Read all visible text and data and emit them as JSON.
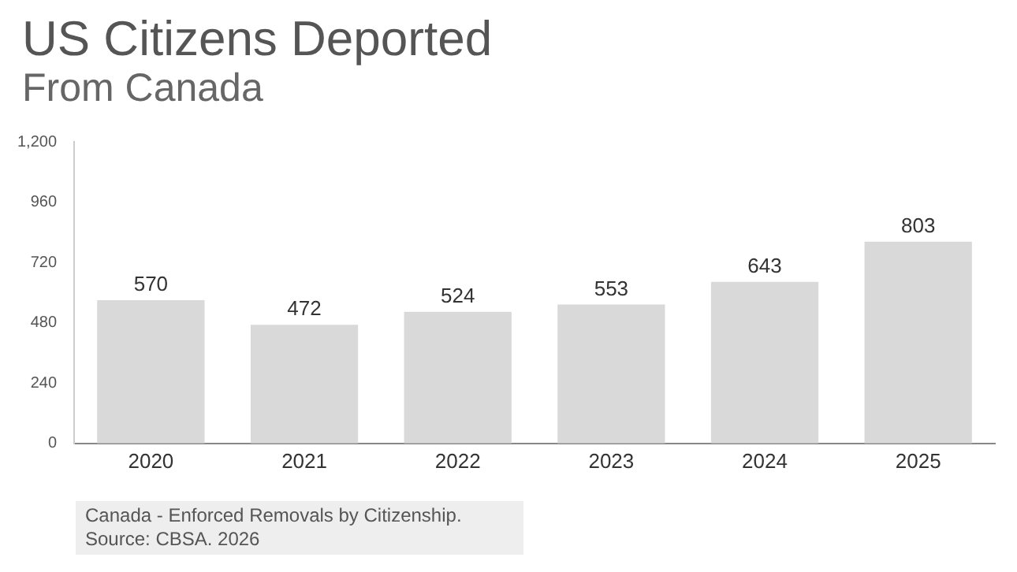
{
  "chart_data": {
    "type": "bar",
    "title": "US Citizens Deported",
    "subtitle": "From Canada",
    "categories": [
      "2020",
      "2021",
      "2022",
      "2023",
      "2024",
      "2025"
    ],
    "values": [
      570,
      472,
      524,
      553,
      643,
      803
    ],
    "color": "#d9d9d9",
    "ylim": [
      0,
      1200
    ],
    "yticks": [
      0,
      240,
      480,
      720,
      960,
      {
        "value": 1200,
        "label": "1,200"
      }
    ],
    "grid": false,
    "data_labels": true,
    "annotations": [
      "Canada - Enforced Removals by Citizenship.",
      "Source: CBSA. 2026"
    ]
  }
}
